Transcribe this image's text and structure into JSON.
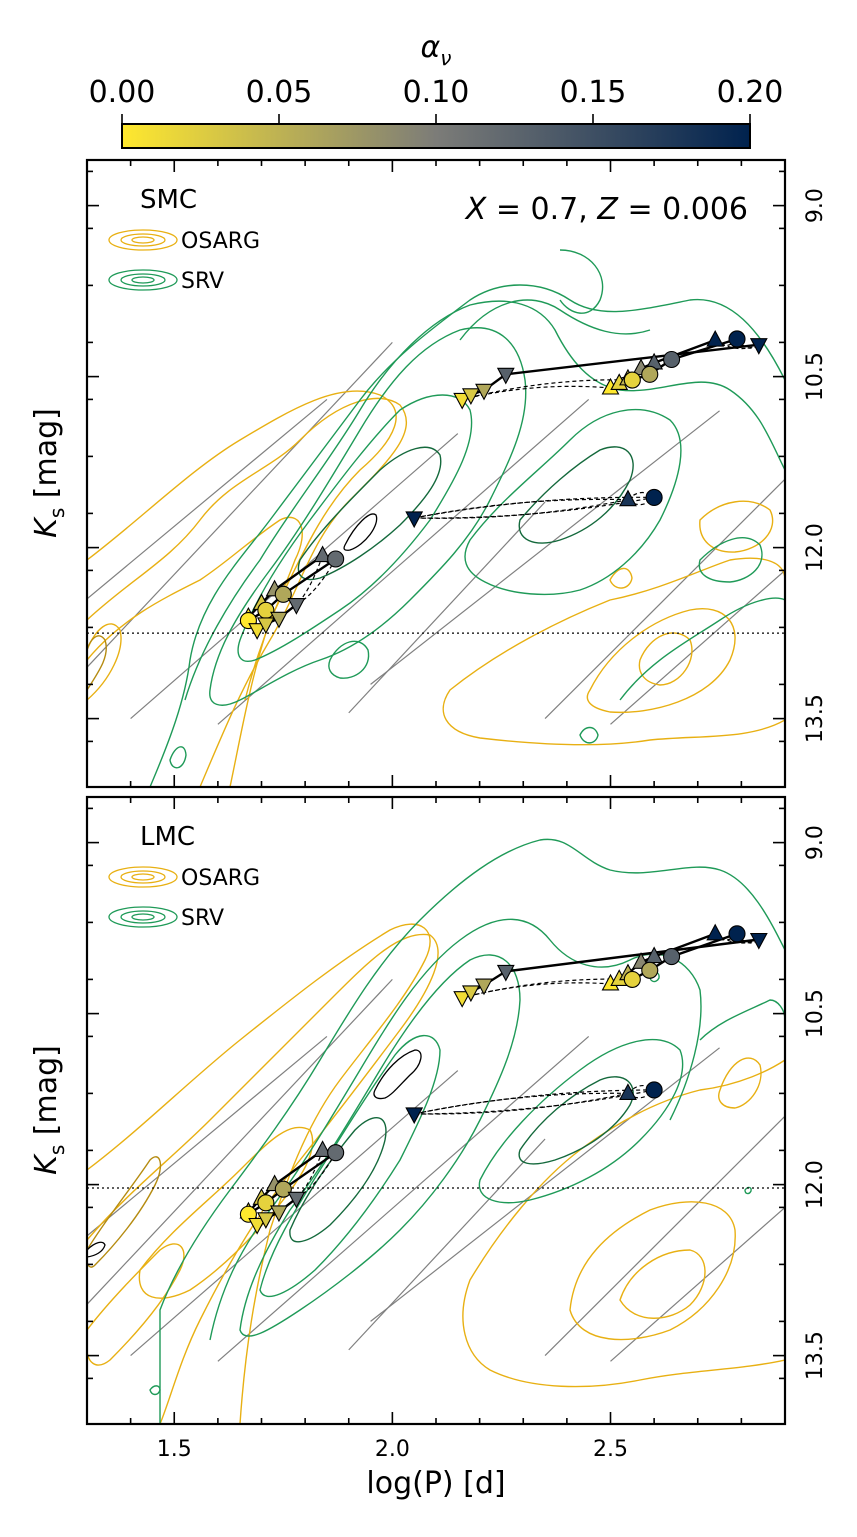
{
  "colorbar": {
    "label": "α_ν",
    "label_main": "α",
    "label_sub": "ν",
    "ticks": [
      "0.00",
      "0.05",
      "0.10",
      "0.15",
      "0.20"
    ],
    "range": [
      0.0,
      0.2
    ],
    "colors": [
      "#ffe82e",
      "#7c7c78",
      "#00224e"
    ]
  },
  "legend": {
    "osarg_label": "OSARG",
    "srv_label": "SRV",
    "osarg_color": "#e8b013",
    "srv_color": "#1f9a58"
  },
  "chart_data": [
    {
      "type": "scatter",
      "panel": "SMC",
      "title": "SMC",
      "annotation_main": "X = 0.7, Z = 0.006",
      "annotation_parts": [
        "X",
        " = 0.7, ",
        "Z",
        " = 0.006"
      ],
      "xlabel": "log(P) [d]",
      "ylabel_main": "K",
      "ylabel_sub": "s",
      "ylabel_unit": " [mag]",
      "xlim": [
        1.3,
        2.9
      ],
      "ylim": [
        14.1,
        8.6
      ],
      "x_ticks": [
        "1.5",
        "2.0",
        "2.5"
      ],
      "y_ticks": [
        "9.0",
        "10.5",
        "12.0",
        "13.5"
      ],
      "trgb_ks": 12.75,
      "series": [
        {
          "group": "upper",
          "marker": "triangle-up",
          "points": [
            {
              "x": 2.74,
              "y": 10.18,
              "a": 0.2
            },
            {
              "x": 2.6,
              "y": 10.38,
              "a": 0.13
            },
            {
              "x": 2.57,
              "y": 10.43,
              "a": 0.09
            },
            {
              "x": 2.54,
              "y": 10.52,
              "a": 0.05
            },
            {
              "x": 2.52,
              "y": 10.56,
              "a": 0.02
            },
            {
              "x": 2.5,
              "y": 10.6,
              "a": 0.0
            }
          ]
        },
        {
          "group": "upper",
          "marker": "circle",
          "points": [
            {
              "x": 2.79,
              "y": 10.17,
              "a": 0.2
            },
            {
              "x": 2.64,
              "y": 10.35,
              "a": 0.13
            },
            {
              "x": 2.59,
              "y": 10.48,
              "a": 0.06
            },
            {
              "x": 2.55,
              "y": 10.53,
              "a": 0.02
            }
          ]
        },
        {
          "group": "upper",
          "marker": "triangle-down",
          "points": [
            {
              "x": 2.84,
              "y": 10.22,
              "a": 0.2
            },
            {
              "x": 2.26,
              "y": 10.48,
              "a": 0.13
            },
            {
              "x": 2.21,
              "y": 10.62,
              "a": 0.06
            },
            {
              "x": 2.18,
              "y": 10.66,
              "a": 0.03
            },
            {
              "x": 2.16,
              "y": 10.7,
              "a": 0.01
            }
          ]
        },
        {
          "group": "middle",
          "marker": "triangle-up",
          "points": [
            {
              "x": 2.54,
              "y": 11.58,
              "a": 0.18
            }
          ]
        },
        {
          "group": "middle",
          "marker": "circle",
          "points": [
            {
              "x": 2.6,
              "y": 11.56,
              "a": 0.2
            }
          ]
        },
        {
          "group": "middle",
          "marker": "triangle-down",
          "points": [
            {
              "x": 2.05,
              "y": 11.74,
              "a": 0.2
            }
          ]
        },
        {
          "group": "lower",
          "marker": "triangle-up",
          "points": [
            {
              "x": 1.84,
              "y": 12.07,
              "a": 0.12
            },
            {
              "x": 1.73,
              "y": 12.37,
              "a": 0.08
            },
            {
              "x": 1.7,
              "y": 12.49,
              "a": 0.03
            },
            {
              "x": 1.67,
              "y": 12.61,
              "a": 0.01
            }
          ]
        },
        {
          "group": "lower",
          "marker": "circle",
          "points": [
            {
              "x": 1.87,
              "y": 12.1,
              "a": 0.12
            },
            {
              "x": 1.75,
              "y": 12.41,
              "a": 0.06
            },
            {
              "x": 1.71,
              "y": 12.55,
              "a": 0.02
            },
            {
              "x": 1.67,
              "y": 12.64,
              "a": 0.0
            }
          ]
        },
        {
          "group": "lower",
          "marker": "triangle-down",
          "points": [
            {
              "x": 1.78,
              "y": 12.5,
              "a": 0.12
            },
            {
              "x": 1.74,
              "y": 12.62,
              "a": 0.06
            },
            {
              "x": 1.71,
              "y": 12.67,
              "a": 0.03
            },
            {
              "x": 1.69,
              "y": 12.72,
              "a": 0.01
            }
          ]
        }
      ]
    },
    {
      "type": "scatter",
      "panel": "LMC",
      "title": "LMC",
      "xlabel": "log(P) [d]",
      "ylabel_main": "K",
      "ylabel_sub": "s",
      "ylabel_unit": " [mag]",
      "xlim": [
        1.3,
        2.9
      ],
      "ylim": [
        14.1,
        8.6
      ],
      "x_ticks": [
        "1.5",
        "2.0",
        "2.5"
      ],
      "y_ticks": [
        "9.0",
        "10.5",
        "12.0",
        "13.5"
      ],
      "trgb_ks": 12.03,
      "series": [
        {
          "group": "upper",
          "marker": "triangle-up",
          "points": [
            {
              "x": 2.74,
              "y": 9.8,
              "a": 0.2
            },
            {
              "x": 2.6,
              "y": 10.0,
              "a": 0.13
            },
            {
              "x": 2.57,
              "y": 10.05,
              "a": 0.09
            },
            {
              "x": 2.54,
              "y": 10.15,
              "a": 0.05
            },
            {
              "x": 2.52,
              "y": 10.2,
              "a": 0.02
            },
            {
              "x": 2.5,
              "y": 10.24,
              "a": 0.0
            }
          ]
        },
        {
          "group": "upper",
          "marker": "circle",
          "points": [
            {
              "x": 2.79,
              "y": 9.8,
              "a": 0.2
            },
            {
              "x": 2.64,
              "y": 10.0,
              "a": 0.13
            },
            {
              "x": 2.59,
              "y": 10.12,
              "a": 0.06
            },
            {
              "x": 2.55,
              "y": 10.2,
              "a": 0.02
            }
          ]
        },
        {
          "group": "upper",
          "marker": "triangle-down",
          "points": [
            {
              "x": 2.84,
              "y": 9.85,
              "a": 0.2
            },
            {
              "x": 2.26,
              "y": 10.13,
              "a": 0.13
            },
            {
              "x": 2.21,
              "y": 10.25,
              "a": 0.06
            },
            {
              "x": 2.18,
              "y": 10.31,
              "a": 0.03
            },
            {
              "x": 2.16,
              "y": 10.36,
              "a": 0.01
            }
          ]
        },
        {
          "group": "middle",
          "marker": "triangle-up",
          "points": [
            {
              "x": 2.54,
              "y": 11.2,
              "a": 0.18
            }
          ]
        },
        {
          "group": "middle",
          "marker": "circle",
          "points": [
            {
              "x": 2.6,
              "y": 11.17,
              "a": 0.2
            }
          ]
        },
        {
          "group": "middle",
          "marker": "triangle-down",
          "points": [
            {
              "x": 2.05,
              "y": 11.38,
              "a": 0.2
            }
          ]
        },
        {
          "group": "lower",
          "marker": "triangle-up",
          "points": [
            {
              "x": 1.84,
              "y": 11.7,
              "a": 0.12
            },
            {
              "x": 1.73,
              "y": 12.0,
              "a": 0.08
            },
            {
              "x": 1.7,
              "y": 12.12,
              "a": 0.03
            },
            {
              "x": 1.67,
              "y": 12.24,
              "a": 0.01
            }
          ]
        },
        {
          "group": "lower",
          "marker": "circle",
          "points": [
            {
              "x": 1.87,
              "y": 11.72,
              "a": 0.12
            },
            {
              "x": 1.75,
              "y": 12.04,
              "a": 0.06
            },
            {
              "x": 1.71,
              "y": 12.16,
              "a": 0.02
            },
            {
              "x": 1.67,
              "y": 12.26,
              "a": 0.0
            }
          ]
        },
        {
          "group": "lower",
          "marker": "triangle-down",
          "points": [
            {
              "x": 1.78,
              "y": 12.12,
              "a": 0.12
            },
            {
              "x": 1.74,
              "y": 12.24,
              "a": 0.06
            },
            {
              "x": 1.71,
              "y": 12.3,
              "a": 0.03
            },
            {
              "x": 1.69,
              "y": 12.35,
              "a": 0.01
            }
          ]
        }
      ]
    }
  ]
}
